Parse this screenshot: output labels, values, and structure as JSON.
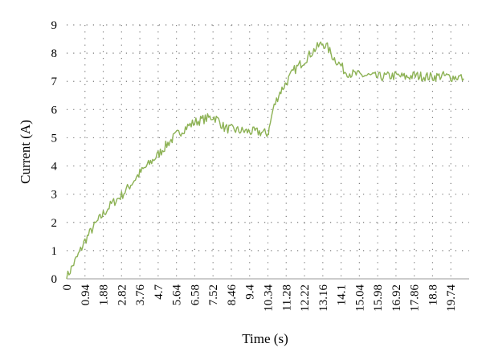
{
  "chart_data": {
    "type": "line",
    "xlabel": "Time (s)",
    "ylabel": "Current (A)",
    "xlim": [
      0,
      20.68
    ],
    "ylim": [
      0,
      9
    ],
    "grid": "dotted",
    "line_color": "#8db255",
    "x_ticks": [
      "0",
      "0.94",
      "1.88",
      "2.82",
      "3.76",
      "4.7",
      "5.64",
      "6.58",
      "7.52",
      "8.46",
      "9.4",
      "10.34",
      "11.28",
      "12.22",
      "13.16",
      "14.1",
      "15.04",
      "15.98",
      "16.92",
      "17.86",
      "18.8",
      "19.74"
    ],
    "y_ticks": [
      "0",
      "1",
      "2",
      "3",
      "4",
      "5",
      "6",
      "7",
      "8",
      "9"
    ],
    "series": [
      {
        "x": [
          0,
          0.3,
          0.6,
          0.94,
          1.3,
          1.6,
          1.88,
          2.3,
          2.82,
          3.3,
          3.76,
          4.2,
          4.7,
          5.2,
          5.64,
          6.1,
          6.58,
          7.0,
          7.3,
          7.52,
          7.8,
          8.1,
          8.46,
          8.9,
          9.4,
          9.9,
          10.34,
          10.4,
          10.6,
          10.9,
          11.28,
          11.7,
          12.22,
          12.7,
          13.0,
          13.16,
          13.4,
          13.7,
          14.1,
          14.3,
          14.6,
          15.04,
          15.5,
          15.98,
          16.5,
          16.92,
          17.4,
          17.86,
          18.3,
          18.8,
          19.3,
          19.74,
          20.2,
          20.4
        ],
        "y": [
          0.05,
          0.45,
          0.85,
          1.35,
          1.75,
          2.05,
          2.3,
          2.65,
          2.95,
          3.35,
          3.75,
          4.05,
          4.4,
          4.8,
          5.1,
          5.35,
          5.55,
          5.65,
          5.7,
          5.75,
          5.62,
          5.35,
          5.3,
          5.25,
          5.22,
          5.2,
          5.15,
          5.3,
          6.0,
          6.55,
          6.95,
          7.4,
          7.75,
          8.1,
          8.28,
          8.35,
          8.2,
          7.85,
          7.55,
          7.35,
          7.28,
          7.22,
          7.2,
          7.15,
          7.18,
          7.2,
          7.15,
          7.2,
          7.18,
          7.15,
          7.2,
          7.15,
          7.15,
          7.1
        ]
      }
    ]
  }
}
